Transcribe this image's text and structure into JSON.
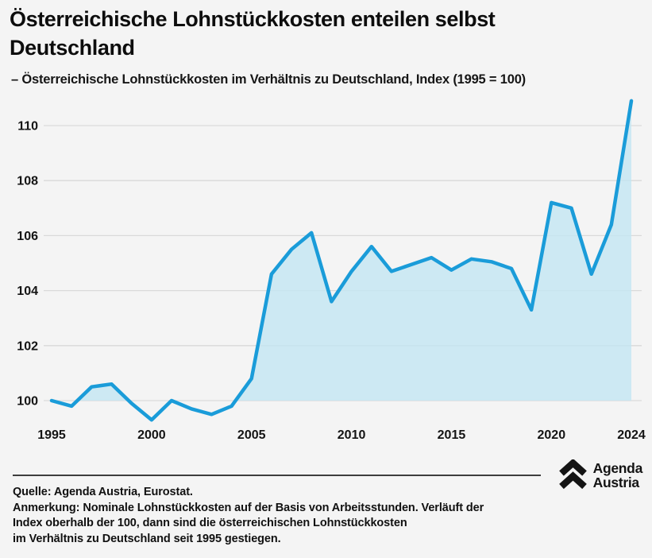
{
  "page": {
    "background_color": "#f4f4f4",
    "title_line1": "Österreichische Lohnstückkosten enteilen selbst",
    "title_line2": "Deutschland",
    "subtitle": "– Österreichische Lohnstückkosten im Verhältnis zu Deutschland, Index (1995 = 100)"
  },
  "chart_data": {
    "type": "area",
    "title": "Österreichische Lohnstückkosten enteilen selbst Deutschland",
    "subtitle": "Österreichische Lohnstückkosten im Verhältnis zu Deutschland, Index (1995 = 100)",
    "series_name": "Österreichische Lohnstückkosten relativ zu Deutschland",
    "x": [
      1995,
      1996,
      1997,
      1998,
      1999,
      2000,
      2001,
      2002,
      2003,
      2004,
      2005,
      2006,
      2007,
      2008,
      2009,
      2010,
      2011,
      2012,
      2013,
      2014,
      2015,
      2016,
      2017,
      2018,
      2019,
      2020,
      2021,
      2022,
      2023,
      2024
    ],
    "values": [
      100.0,
      99.8,
      100.5,
      100.6,
      99.9,
      99.3,
      100.0,
      99.7,
      99.5,
      99.8,
      100.8,
      104.6,
      105.5,
      106.1,
      103.6,
      104.7,
      105.6,
      104.7,
      104.95,
      105.2,
      104.75,
      105.15,
      105.05,
      104.8,
      103.3,
      107.2,
      107.0,
      104.6,
      106.4,
      110.9
    ],
    "baseline": 100,
    "xticks": [
      1995,
      2000,
      2005,
      2010,
      2015,
      2020,
      2024
    ],
    "yticks": [
      100,
      102,
      104,
      106,
      108,
      110
    ],
    "ylim": [
      99.2,
      111.2
    ],
    "grid": true,
    "legend": "none",
    "colors": {
      "line": "#1a9cd9",
      "fill": "#c5e6f3",
      "grid": "#d9d9d9",
      "axis_text": "#141414"
    }
  },
  "footer": {
    "source": "Quelle: Agenda Austria, Eurostat.",
    "note_line1": "Anmerkung: Nominale Lohnstückkosten auf der Basis von Arbeitsstunden. Verläuft der",
    "note_line2": "Index oberhalb der 100, dann sind die österreichischen Lohnstückkosten",
    "note_line3": "im Verhältnis zu Deutschland seit 1995 gestiegen."
  },
  "logo": {
    "line1": "Agenda",
    "line2": "Austria"
  }
}
